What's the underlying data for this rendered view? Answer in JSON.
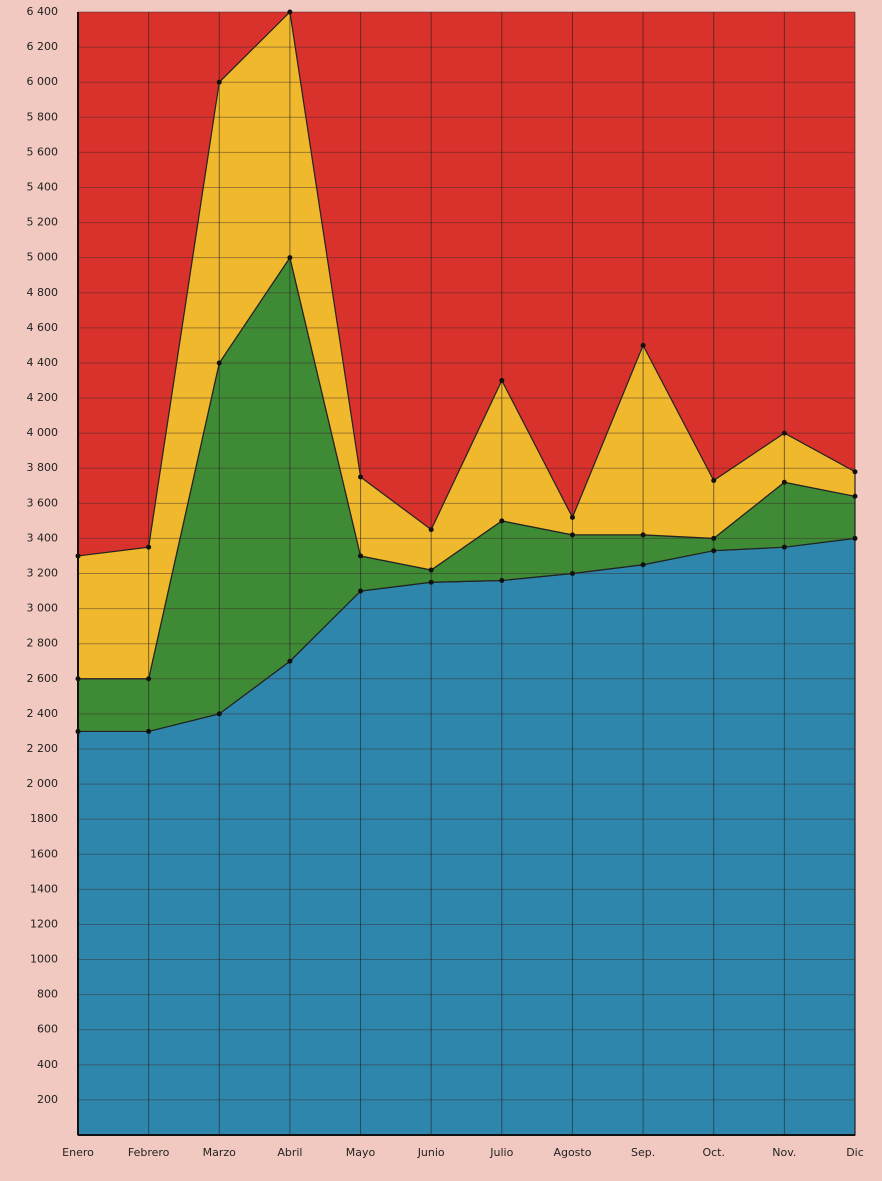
{
  "chart_data": {
    "type": "stacked-area",
    "categories": [
      "Enero",
      "Febrero",
      "Marzo",
      "Abril",
      "Mayo",
      "Junio",
      "Julio",
      "Agosto",
      "Sep.",
      "Oct.",
      "Nov.",
      "Dic"
    ],
    "series": [
      {
        "color": "#2f86ad",
        "values": [
          2300,
          2300,
          2400,
          2700,
          3100,
          3150,
          3160,
          3200,
          3250,
          3330,
          3350,
          3400
        ]
      },
      {
        "color": "#3f8a35",
        "values": [
          300,
          300,
          2000,
          2300,
          200,
          70,
          340,
          220,
          170,
          70,
          370,
          240
        ]
      },
      {
        "color": "#f0b82c",
        "values": [
          700,
          750,
          1600,
          1400,
          450,
          230,
          800,
          100,
          1080,
          330,
          280,
          140
        ]
      }
    ],
    "background_color": "#d9312b",
    "ylim": [
      0,
      6400
    ],
    "yticks": [
      200,
      400,
      600,
      800,
      1000,
      1200,
      1400,
      1600,
      1800,
      {
        "value": 2000,
        "label": "2 000"
      },
      {
        "value": 2200,
        "label": "2 200"
      },
      {
        "value": 2400,
        "label": "2 400"
      },
      {
        "value": 2600,
        "label": "2 600"
      },
      {
        "value": 2800,
        "label": "2 800"
      },
      {
        "value": 3000,
        "label": "3 000"
      },
      {
        "value": 3200,
        "label": "3 200"
      },
      {
        "value": 3400,
        "label": "3 400"
      },
      {
        "value": 3600,
        "label": "3 600"
      },
      {
        "value": 3800,
        "label": "3 800"
      },
      {
        "value": 4000,
        "label": "4 000"
      },
      {
        "value": 4200,
        "label": "4 200"
      },
      {
        "value": 4400,
        "label": "4 400"
      },
      {
        "value": 4600,
        "label": "4 600"
      },
      {
        "value": 4800,
        "label": "4 800"
      },
      {
        "value": 5000,
        "label": "5 000"
      },
      {
        "value": 5200,
        "label": "5 200"
      },
      {
        "value": 5400,
        "label": "5 400"
      },
      {
        "value": 5600,
        "label": "5 600"
      },
      {
        "value": 5800,
        "label": "5 800"
      },
      {
        "value": 6000,
        "label": "6 000"
      },
      {
        "value": 6200,
        "label": "6 200"
      },
      {
        "value": 6400,
        "label": "6 400"
      }
    ],
    "grid": true
  }
}
